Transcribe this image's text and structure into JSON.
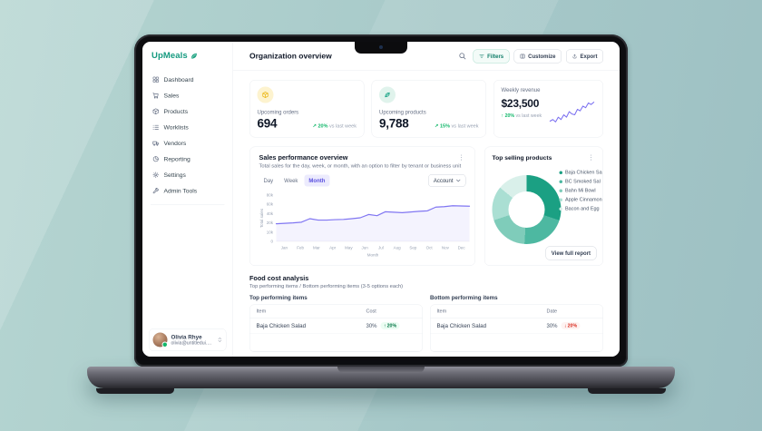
{
  "brand": {
    "name": "UpMeals",
    "color": "#149a7f"
  },
  "sidebar": {
    "items": [
      {
        "label": "Dashboard",
        "icon": "grid-icon"
      },
      {
        "label": "Sales",
        "icon": "cart-icon"
      },
      {
        "label": "Products",
        "icon": "box-icon"
      },
      {
        "label": "Worklists",
        "icon": "list-icon"
      },
      {
        "label": "Vendors",
        "icon": "truck-icon"
      },
      {
        "label": "Reporting",
        "icon": "report-icon"
      },
      {
        "label": "Settings",
        "icon": "gear-icon"
      },
      {
        "label": "Admin Tools",
        "icon": "tools-icon"
      }
    ],
    "user": {
      "name": "Olivia Rhye",
      "email": "olivia@untitledui.com"
    }
  },
  "header": {
    "title": "Organization overview",
    "filters_label": "Filters",
    "customize_label": "Customize",
    "export_label": "Export"
  },
  "stats": [
    {
      "label": "Upcoming orders",
      "value": "694",
      "trend": "20%",
      "trend_dir": "up",
      "compare": "vs last week",
      "icon": "package-icon"
    },
    {
      "label": "Upcoming products",
      "value": "9,788",
      "trend": "15%",
      "trend_dir": "up",
      "compare": "vs last week",
      "icon": "leaf-icon"
    },
    {
      "label": "Weekly revenue",
      "value": "$23,500",
      "trend": "20%",
      "trend_dir": "up",
      "compare": "vs last week"
    }
  ],
  "sales_card": {
    "title": "Sales performance overview",
    "subtitle": "Total sales for the day, week, or month, with an option to filter by tenant or business unit",
    "tabs": [
      "Day",
      "Week",
      "Month"
    ],
    "active_tab": "Month",
    "account_dropdown": "Account"
  },
  "products_card": {
    "title": "Top selling products",
    "button": "View full report"
  },
  "food_section": {
    "title": "Food cost analysis",
    "subtitle": "Top performing items / Bottom performing items (3-5 options each)",
    "tables": [
      {
        "heading": "Top performing items",
        "columns": [
          "Item",
          "Cost"
        ],
        "rows": [
          {
            "item": "Baja Chicken Salad",
            "value": "30%",
            "badge": "20%",
            "badge_dir": "up"
          }
        ]
      },
      {
        "heading": "Bottom performing items",
        "columns": [
          "Item",
          "Date"
        ],
        "rows": [
          {
            "item": "Baja Chicken Salad",
            "value": "30%",
            "badge": "20%",
            "badge_dir": "down"
          }
        ]
      }
    ]
  },
  "chart_data": [
    {
      "type": "line",
      "title": "Sales performance overview",
      "xlabel": "Month",
      "ylabel": "Total sales",
      "x_labels": [
        "Jan",
        "Feb",
        "Mar",
        "Apr",
        "May",
        "Jun",
        "Jul",
        "Aug",
        "Sep",
        "Oct",
        "Nov",
        "Dec"
      ],
      "y_ticks": [
        "80k",
        "60k",
        "40k",
        "20k",
        "10k",
        "0"
      ],
      "y_tick_values": [
        0,
        10,
        20,
        40,
        60,
        80
      ],
      "values_k": [
        19,
        19.5,
        20,
        21.5,
        29,
        26,
        26,
        27,
        27.5,
        29,
        31,
        38,
        35.5,
        44,
        43,
        42,
        43.5,
        45,
        46,
        54,
        55,
        57,
        56.5,
        56
      ],
      "line_color": "#8076f2",
      "grid": false,
      "legend": false
    },
    {
      "type": "pie",
      "title": "Top selling products",
      "donut": true,
      "segments": [
        {
          "label": "Baja Chicken Sa",
          "value": 30,
          "color": "#1ba083"
        },
        {
          "label": "BC Smoked Sal",
          "value": 21,
          "color": "#4db8a1"
        },
        {
          "label": "Bahn Mi Bowl",
          "value": 19,
          "color": "#7fccba"
        },
        {
          "label": "Apple Cinnamon",
          "value": 16,
          "color": "#aadfd3"
        },
        {
          "label": "Bacon and Egg",
          "value": 14,
          "color": "#d9f0ea"
        }
      ],
      "legend_position": "right"
    },
    {
      "type": "line",
      "title": "Weekly revenue sparkline",
      "values": [
        22,
        24,
        21,
        27,
        24,
        30,
        27,
        34,
        31,
        30,
        37,
        35,
        41,
        39,
        45,
        43,
        46
      ],
      "color": "#7a6ff0"
    }
  ],
  "colors": {
    "accent_teal": "#149a7f",
    "accent_purple": "#8076f2",
    "success_green": "#12b76a",
    "danger_red": "#d92d20"
  }
}
